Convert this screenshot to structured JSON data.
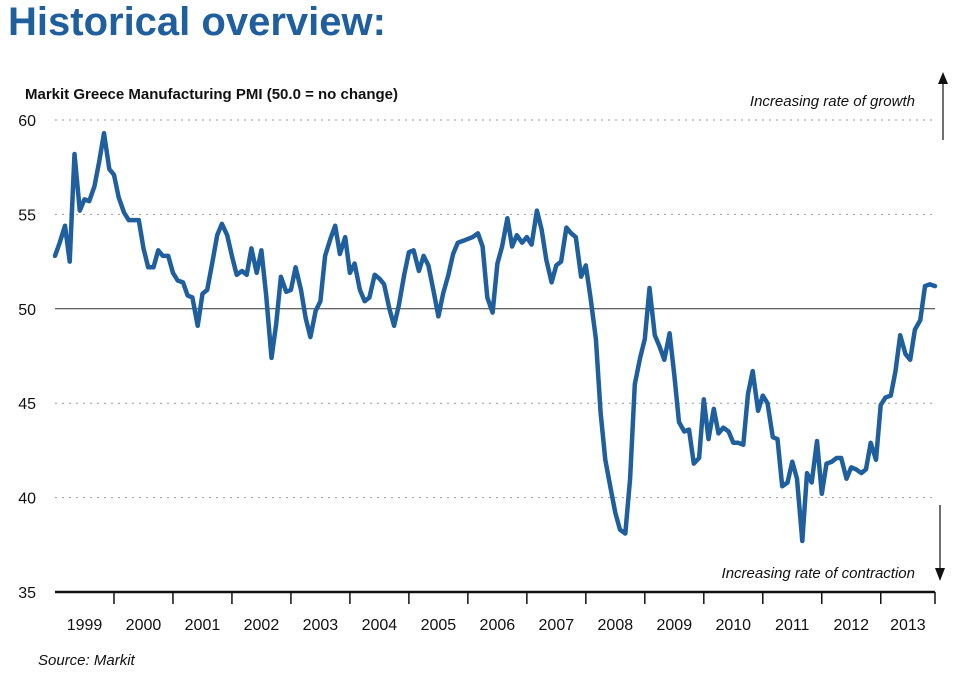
{
  "header": {
    "title": "Historical overview:"
  },
  "source": "Source: Markit",
  "colors": {
    "title": "#1f5f9e",
    "line": "#1f5f9e",
    "text": "#111111",
    "grid": "#9a9a9a"
  },
  "chart_data": {
    "type": "line",
    "title": "Markit Greece Manufacturing PMI (50.0 = no change)",
    "xlabel": "",
    "ylabel": "",
    "ylim": [
      35,
      60
    ],
    "yticks": [
      35,
      40,
      45,
      50,
      55,
      60
    ],
    "xlim": [
      1999.0,
      2013.92
    ],
    "x_tick_labels": [
      "1999",
      "2000",
      "2001",
      "2002",
      "2003",
      "2004",
      "2005",
      "2006",
      "2007",
      "2008",
      "2009",
      "2010",
      "2011",
      "2012",
      "2013"
    ],
    "grid": "horizontal dotted",
    "reference_line": 50,
    "annotations": {
      "growth": "Increasing rate of growth",
      "contraction": "Increasing rate of contraction"
    },
    "series": [
      {
        "x": [
          1999.0,
          1999.08,
          1999.17,
          1999.25,
          1999.33,
          1999.42,
          1999.5,
          1999.58,
          1999.67,
          1999.75,
          1999.83,
          1999.92,
          2000.0,
          2000.08,
          2000.17,
          2000.25,
          2000.33,
          2000.42,
          2000.5,
          2000.58,
          2000.67,
          2000.75,
          2000.83,
          2000.92,
          2001.0,
          2001.08,
          2001.17,
          2001.25,
          2001.33,
          2001.42,
          2001.5,
          2001.58,
          2001.67,
          2001.75,
          2001.83,
          2001.92,
          2002.0,
          2002.08,
          2002.17,
          2002.25,
          2002.33,
          2002.42,
          2002.5,
          2002.58,
          2002.67,
          2002.75,
          2002.83,
          2002.92,
          2003.0,
          2003.08,
          2003.17,
          2003.25,
          2003.33,
          2003.42,
          2003.5,
          2003.58,
          2003.67,
          2003.75,
          2003.83,
          2003.92,
          2004.0,
          2004.08,
          2004.17,
          2004.25,
          2004.33,
          2004.42,
          2004.5,
          2004.58,
          2004.67,
          2004.75,
          2004.83,
          2004.92,
          2005.0,
          2005.08,
          2005.17,
          2005.25,
          2005.33,
          2005.42,
          2005.5,
          2005.58,
          2005.67,
          2005.75,
          2005.83,
          2005.92,
          2006.0,
          2006.08,
          2006.17,
          2006.25,
          2006.33,
          2006.42,
          2006.5,
          2006.58,
          2006.67,
          2006.75,
          2006.83,
          2006.92,
          2007.0,
          2007.08,
          2007.17,
          2007.25,
          2007.33,
          2007.42,
          2007.5,
          2007.58,
          2007.67,
          2007.75,
          2007.83,
          2007.92,
          2008.0,
          2008.08,
          2008.17,
          2008.25,
          2008.33,
          2008.42,
          2008.5,
          2008.58,
          2008.67,
          2008.75,
          2008.83,
          2008.92,
          2009.0,
          2009.08,
          2009.17,
          2009.25,
          2009.33,
          2009.42,
          2009.5,
          2009.58,
          2009.67,
          2009.75,
          2009.83,
          2009.92,
          2010.0,
          2010.08,
          2010.17,
          2010.25,
          2010.33,
          2010.42,
          2010.5,
          2010.58,
          2010.67,
          2010.75,
          2010.83,
          2010.92,
          2011.0,
          2011.08,
          2011.17,
          2011.25,
          2011.33,
          2011.42,
          2011.5,
          2011.58,
          2011.67,
          2011.75,
          2011.83,
          2011.92,
          2012.0,
          2012.08,
          2012.17,
          2012.25,
          2012.33,
          2012.42,
          2012.5,
          2012.58,
          2012.67,
          2012.75,
          2012.83,
          2012.92,
          2013.0,
          2013.08,
          2013.17,
          2013.25,
          2013.33,
          2013.42,
          2013.5,
          2013.58,
          2013.67,
          2013.75,
          2013.83,
          2013.92
        ],
        "values": [
          52.8,
          53.5,
          54.4,
          52.5,
          58.2,
          55.2,
          55.8,
          55.7,
          56.5,
          57.8,
          59.3,
          57.4,
          57.1,
          55.9,
          55.1,
          54.7,
          54.7,
          54.7,
          53.2,
          52.2,
          52.2,
          53.1,
          52.8,
          52.8,
          51.9,
          51.5,
          51.4,
          50.7,
          50.6,
          49.1,
          50.8,
          51.0,
          52.5,
          53.9,
          54.5,
          53.9,
          52.8,
          51.8,
          52.0,
          51.8,
          53.2,
          51.9,
          53.1,
          50.7,
          47.4,
          49.2,
          51.7,
          50.9,
          51.0,
          52.2,
          51.0,
          49.5,
          48.5,
          49.9,
          50.4,
          52.8,
          53.7,
          54.4,
          52.9,
          53.8,
          51.9,
          52.4,
          51.0,
          50.4,
          50.6,
          51.8,
          51.6,
          51.3,
          50.0,
          49.1,
          50.2,
          51.8,
          53.0,
          53.1,
          52.0,
          52.8,
          52.3,
          50.9,
          49.6,
          50.8,
          51.8,
          52.9,
          53.5,
          53.6,
          53.7,
          53.8,
          54.0,
          53.3,
          50.6,
          49.8,
          52.4,
          53.3,
          54.8,
          53.3,
          53.9,
          53.5,
          53.8,
          53.4,
          55.2,
          54.2,
          52.6,
          51.4,
          52.3,
          52.5,
          54.3,
          54.0,
          53.8,
          51.7,
          52.3,
          50.6,
          48.4,
          44.5,
          42.0,
          40.5,
          39.2,
          38.3,
          38.1,
          41.0,
          46.0,
          47.4,
          48.4,
          51.1,
          48.6,
          48.0,
          47.3,
          48.7,
          46.5,
          44.0,
          43.5,
          43.6,
          41.8,
          42.1,
          45.2,
          43.1,
          44.7,
          43.4,
          43.7,
          43.5,
          42.9,
          42.9,
          42.8,
          45.5,
          46.7,
          44.6,
          45.4,
          45.0,
          43.2,
          43.1,
          40.6,
          40.8,
          41.9,
          41.0,
          37.7,
          41.3,
          40.8,
          43.0,
          40.2,
          41.8,
          41.9,
          42.1,
          42.1,
          41.0,
          41.6,
          41.5,
          41.3,
          41.5,
          42.9,
          42.0,
          44.9,
          45.3,
          45.4,
          46.7,
          48.6,
          47.6,
          47.3,
          48.9,
          49.4,
          51.2,
          51.3,
          51.2
        ]
      }
    ]
  }
}
